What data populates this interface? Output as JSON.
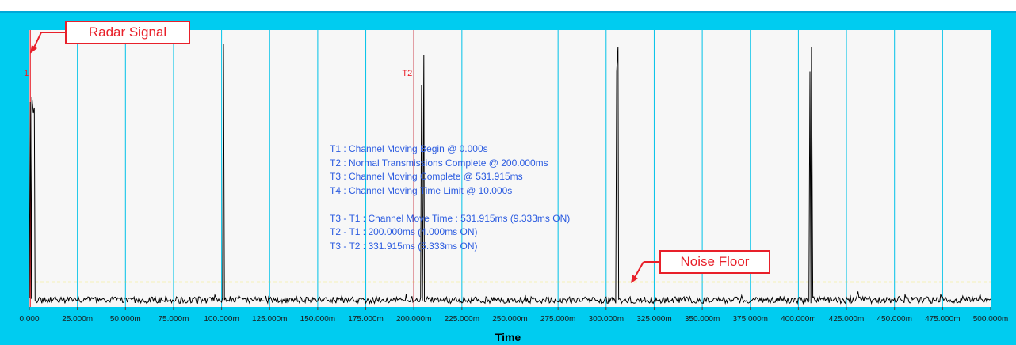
{
  "chart_data": {
    "type": "line",
    "title": "",
    "xlabel": "Time",
    "ylabel": "",
    "xlim": [
      0,
      500
    ],
    "x_unit": "ms",
    "x_ticks": [
      0,
      25,
      50,
      75,
      100,
      125,
      150,
      175,
      200,
      225,
      250,
      275,
      300,
      325,
      350,
      375,
      400,
      425,
      450,
      475,
      500
    ],
    "x_tick_labels": [
      "0.000",
      "25.000m",
      "50.000m",
      "75.000m",
      "100.000m",
      "125.000m",
      "150.000m",
      "175.000m",
      "200.000m",
      "225.000m",
      "250.000m",
      "275.000m",
      "300.000m",
      "325.000m",
      "350.000m",
      "375.000m",
      "400.000m",
      "425.000m",
      "450.000m",
      "475.000m",
      "500.000m"
    ],
    "grid": true,
    "noise_floor_level": 0.09,
    "noise_base_level": 0.025,
    "noise_amplitude": 0.012,
    "bursts": [
      {
        "x": [
          0.5,
          1.3,
          2.1,
          2.6
        ],
        "y": [
          0.74,
          0.76,
          0.7,
          0.72
        ]
      },
      {
        "x": [
          101.0
        ],
        "y": [
          0.95
        ]
      },
      {
        "x": [
          204.0,
          205.2
        ],
        "y": [
          0.8,
          0.91
        ]
      },
      {
        "x": [
          305.5,
          306.2
        ],
        "y": [
          0.85,
          0.94
        ]
      },
      {
        "x": [
          406.0,
          406.8
        ],
        "y": [
          0.85,
          0.94
        ]
      }
    ],
    "markers": [
      {
        "label": "1",
        "x": 0.5
      },
      {
        "label": "T2",
        "x": 200.0
      }
    ]
  },
  "annotations": {
    "lines": [
      "T1 : Channel Moving Begin @ 0.000s",
      "T2 : Normal Transmissions Complete @ 200.000ms",
      "T3 : Channel Moving Complete @ 531.915ms",
      "T4 : Channel Moving Time Limit @ 10.000s",
      "",
      "T3 - T1 : Channel Move Time : 531.915ms (9.333ms ON)",
      "T2 - T1 : 200.000ms (4.000ms ON)",
      "T3 - T2 : 331.915ms (5.333ms ON)"
    ]
  },
  "callouts": {
    "radar_signal": "Radar Signal",
    "noise_floor": "Noise Floor"
  },
  "colors": {
    "frame": "#00ccf0",
    "plot_bg": "#f7f7f7",
    "grid": "#00c2e8",
    "signal": "#000000",
    "marker": "#e8202a",
    "noise_floor": "#f0e000",
    "annotation_text": "#2b5be0"
  }
}
